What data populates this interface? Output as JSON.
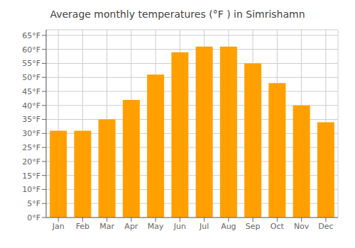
{
  "chart_data": {
    "type": "bar",
    "title": "Average monthly temperatures (°F ) in Simrishamn",
    "categories": [
      "Jan",
      "Feb",
      "Mar",
      "Apr",
      "May",
      "Jun",
      "Jul",
      "Aug",
      "Sep",
      "Oct",
      "Nov",
      "Dec"
    ],
    "values": [
      31,
      31,
      35,
      42,
      51,
      59,
      61,
      61,
      55,
      48,
      40,
      34
    ],
    "color": "#FFA000",
    "ylim": [
      0,
      67
    ],
    "yticks": [
      {
        "value": 0,
        "label": "0°F"
      },
      {
        "value": 5,
        "label": "5°F"
      },
      {
        "value": 10,
        "label": "10°F"
      },
      {
        "value": 15,
        "label": "15°F"
      },
      {
        "value": 20,
        "label": "20°F"
      },
      {
        "value": 25,
        "label": "25°F"
      },
      {
        "value": 30,
        "label": "30°F"
      },
      {
        "value": 35,
        "label": "35°F"
      },
      {
        "value": 40,
        "label": "40°F"
      },
      {
        "value": 45,
        "label": "45°F"
      },
      {
        "value": 50,
        "label": "50°F"
      },
      {
        "value": 55,
        "label": "55°F"
      },
      {
        "value": 60,
        "label": "60°F"
      },
      {
        "value": 65,
        "label": "65°F"
      }
    ],
    "grid": true
  }
}
